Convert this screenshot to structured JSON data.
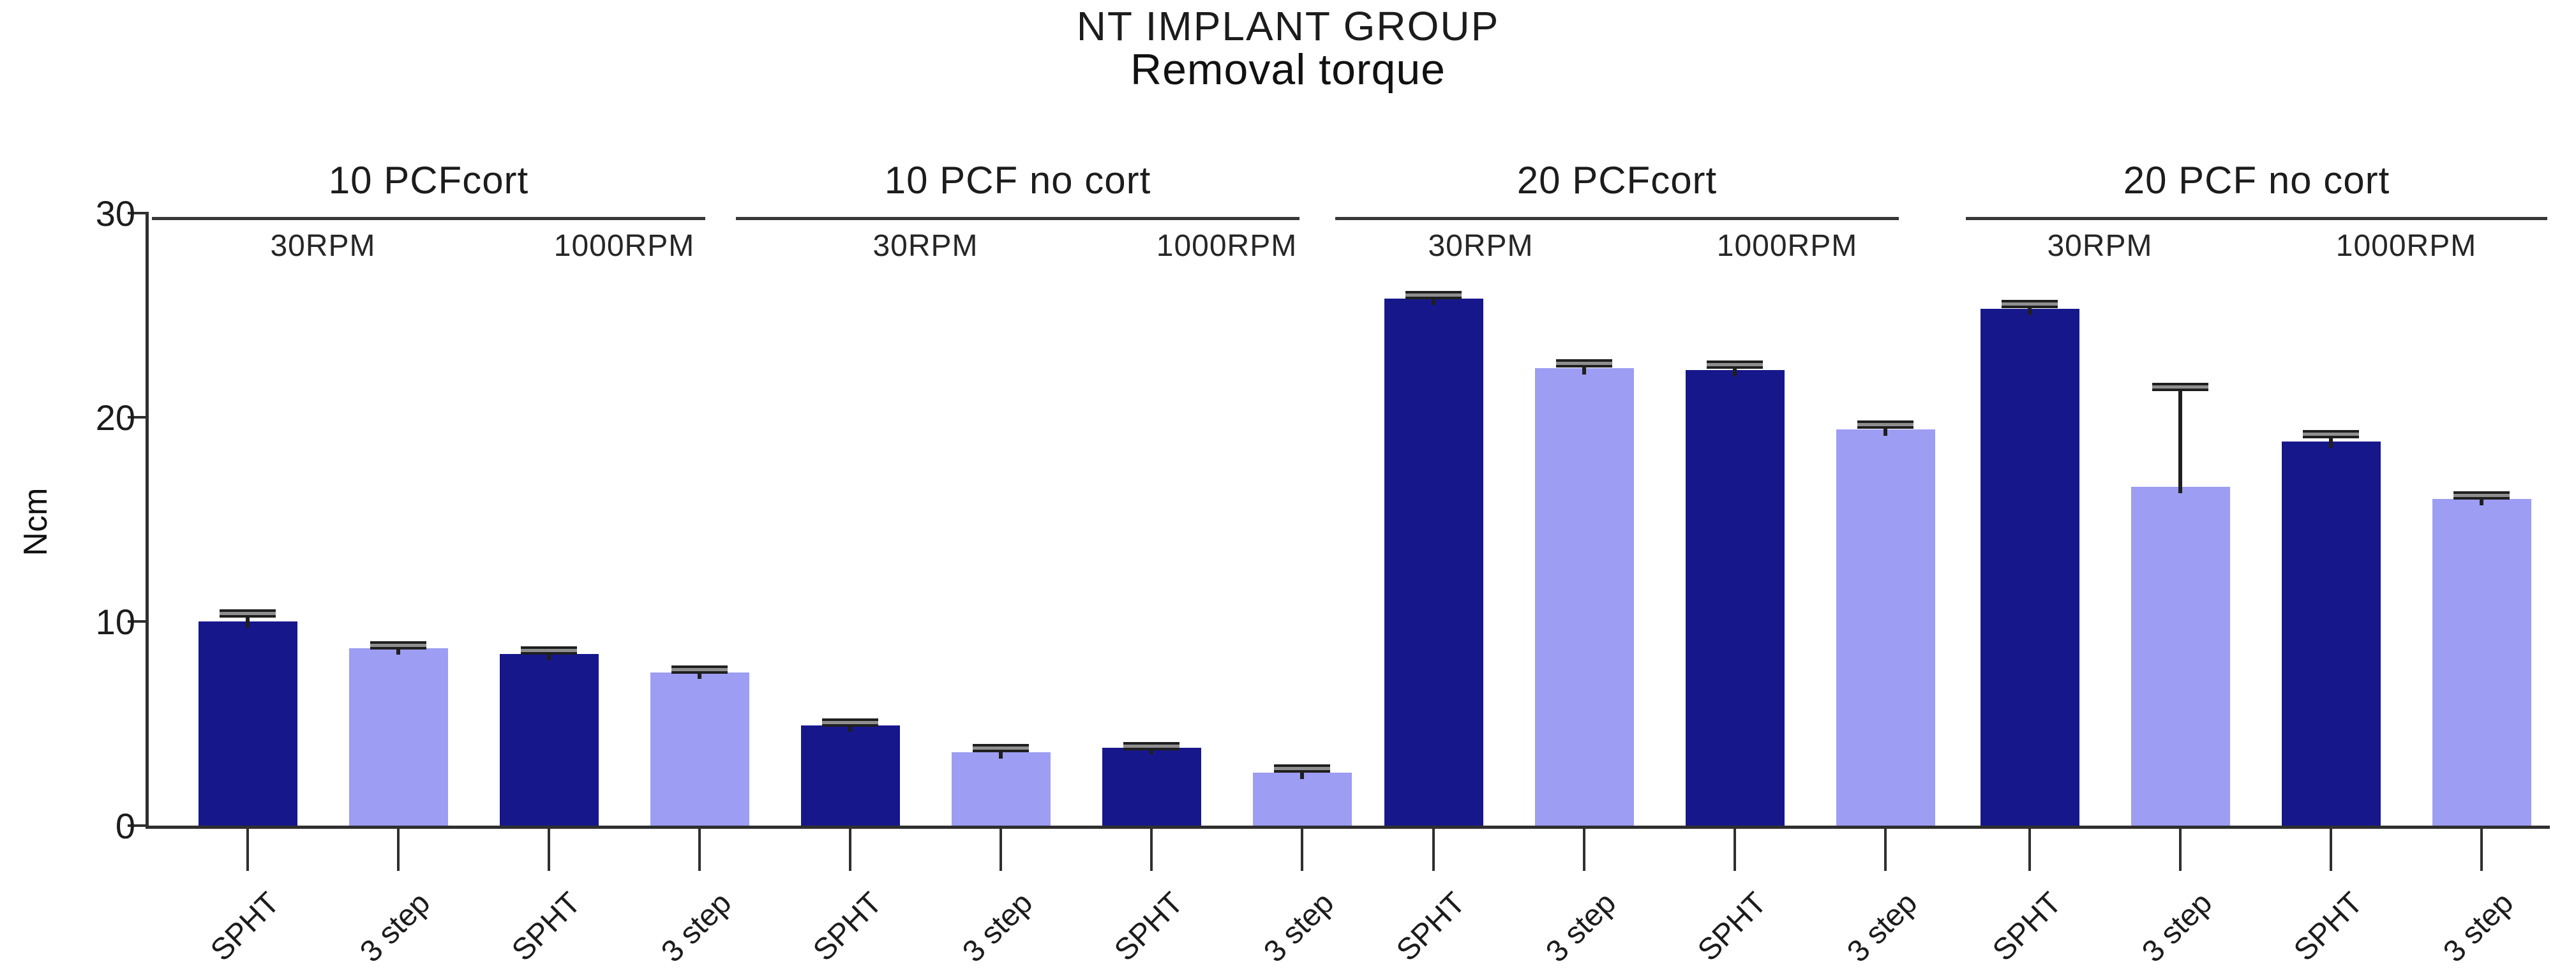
{
  "chart_data": {
    "type": "bar",
    "title": "NT IMPLANT GROUP",
    "subtitle": "Removal torque",
    "ylabel": "Ncm",
    "ylim": [
      0,
      30
    ],
    "yticks": [
      0,
      10,
      20,
      30
    ],
    "grid": false,
    "legend_position": "none",
    "bar_labels": [
      "SPHT",
      "3 step"
    ],
    "colors": {
      "SPHT": "#17178C",
      "3 step": "#9D9DF3"
    },
    "error_bar_style": {
      "stem_color": "#1f1f1f",
      "cap_fill": "#8f8f8f"
    },
    "groups": [
      {
        "label": "10 PCFcort",
        "subgroups": [
          {
            "label": "30RPM",
            "bars": [
              {
                "label": "SPHT",
                "value": 10.0,
                "error": 0.4
              },
              {
                "label": "3 step",
                "value": 8.7,
                "error": 0.15
              }
            ]
          },
          {
            "label": "1000RPM",
            "bars": [
              {
                "label": "SPHT",
                "value": 8.4,
                "error": 0.2
              },
              {
                "label": "3 step",
                "value": 7.5,
                "error": 0.15
              }
            ]
          }
        ]
      },
      {
        "label": "10 PCF no cort",
        "subgroups": [
          {
            "label": "30RPM",
            "bars": [
              {
                "label": "SPHT",
                "value": 4.9,
                "error": 0.15
              },
              {
                "label": "3 step",
                "value": 3.6,
                "error": 0.2
              }
            ]
          },
          {
            "label": "1000RPM",
            "bars": [
              {
                "label": "SPHT",
                "value": 3.8,
                "error": 0.1
              },
              {
                "label": "3 step",
                "value": 2.6,
                "error": 0.2
              }
            ]
          }
        ]
      },
      {
        "label": "20 PCFcort",
        "subgroups": [
          {
            "label": "30RPM",
            "bars": [
              {
                "label": "SPHT",
                "value": 25.8,
                "error": 0.2
              },
              {
                "label": "3 step",
                "value": 22.4,
                "error": 0.25
              }
            ]
          },
          {
            "label": "1000RPM",
            "bars": [
              {
                "label": "SPHT",
                "value": 22.3,
                "error": 0.3
              },
              {
                "label": "3 step",
                "value": 19.4,
                "error": 0.25
              }
            ]
          }
        ]
      },
      {
        "label": "20 PCF no cort",
        "subgroups": [
          {
            "label": "30RPM",
            "bars": [
              {
                "label": "SPHT",
                "value": 25.3,
                "error": 0.25
              },
              {
                "label": "3 step",
                "value": 16.6,
                "error": 4.9
              }
            ]
          },
          {
            "label": "1000RPM",
            "bars": [
              {
                "label": "SPHT",
                "value": 18.8,
                "error": 0.4
              },
              {
                "label": "3 step",
                "value": 16.0,
                "error": 0.2
              }
            ]
          }
        ]
      }
    ]
  }
}
